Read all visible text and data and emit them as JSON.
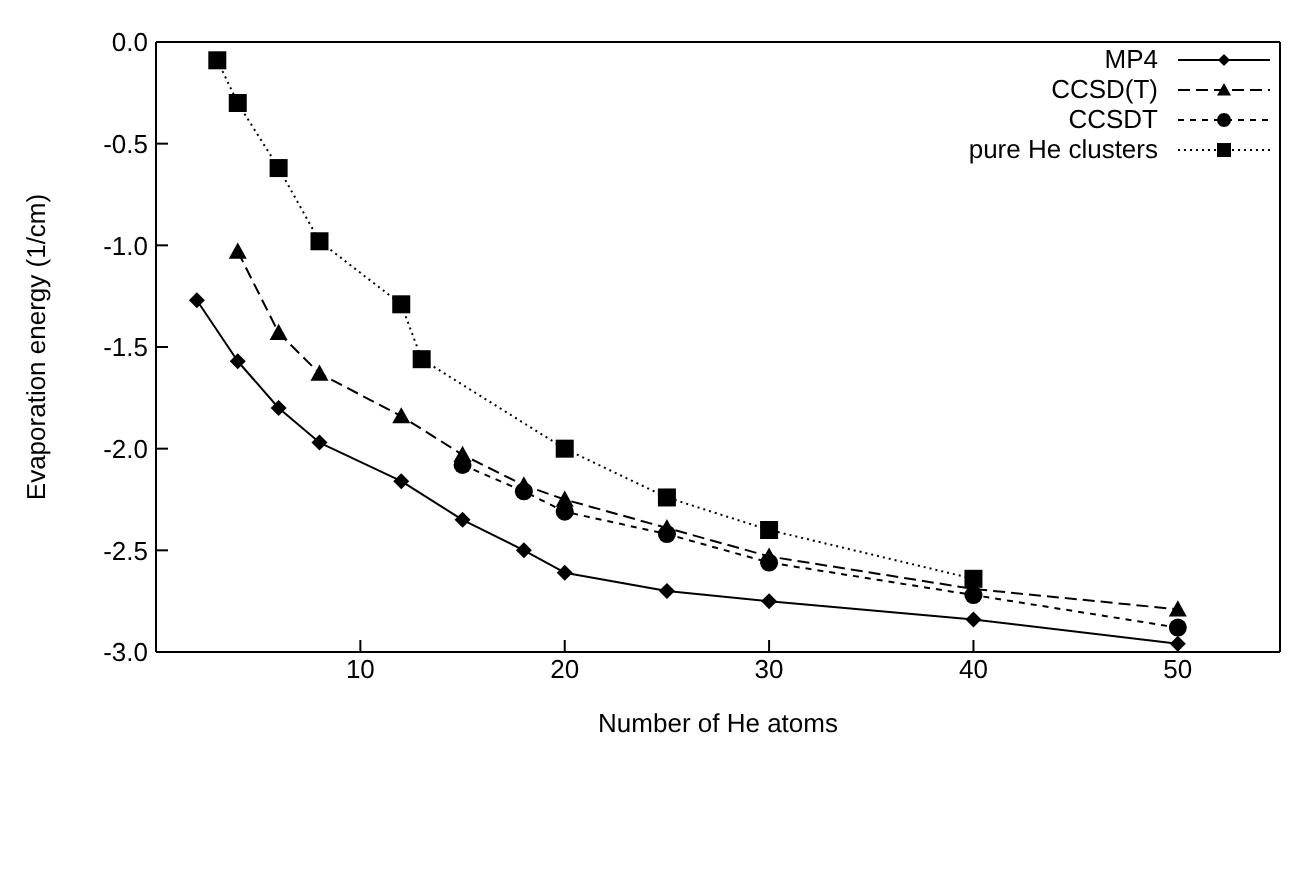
{
  "chart_data": {
    "type": "line",
    "xlabel": "Number of He atoms",
    "ylabel": "Evaporation energy (1/cm)",
    "xlim": [
      0,
      55
    ],
    "xticks": [
      10,
      20,
      30,
      40,
      50
    ],
    "ylim": [
      -3,
      0
    ],
    "yticks": [
      {
        "value": 0,
        "label": "0.0"
      },
      -0.5,
      {
        "value": -1,
        "label": "-1.0"
      },
      -1.5,
      {
        "value": -2,
        "label": "-2.0"
      },
      -2.5,
      {
        "value": -3,
        "label": "-3.0"
      }
    ],
    "legend": "top right",
    "grid": false,
    "series": [
      {
        "name": "MP4",
        "color": "#000000",
        "marker": "diamond",
        "line_style": "solid",
        "x": [
          2,
          4,
          6,
          8,
          12,
          15,
          18,
          20,
          25,
          30,
          40,
          50
        ],
        "values": [
          -1.27,
          -1.57,
          -1.8,
          -1.97,
          -2.16,
          -2.35,
          -2.5,
          -2.61,
          -2.7,
          -2.75,
          -2.84,
          -2.96
        ]
      },
      {
        "name": "CCSD(T)",
        "color": "#000000",
        "marker": "triangle",
        "line_style": "dashed",
        "x": [
          4,
          6,
          8,
          12,
          15,
          18,
          20,
          25,
          30,
          40,
          50
        ],
        "values": [
          -1.03,
          -1.43,
          -1.63,
          -1.84,
          -2.03,
          -2.18,
          -2.25,
          -2.39,
          -2.53,
          -2.69,
          -2.79
        ]
      },
      {
        "name": "CCSDT",
        "color": "#000000",
        "marker": "circle",
        "line_style": "dashed",
        "x": [
          15,
          18,
          20,
          25,
          30,
          40,
          50
        ],
        "values": [
          -2.08,
          -2.21,
          -2.31,
          -2.42,
          -2.56,
          -2.72,
          -2.88
        ]
      },
      {
        "name": "pure He clusters",
        "color": "#000000",
        "marker": "square",
        "line_style": "dotted",
        "x": [
          3,
          4,
          6,
          8,
          12,
          13,
          20,
          25,
          30,
          40
        ],
        "values": [
          -0.09,
          -0.3,
          -0.62,
          -0.98,
          -1.29,
          -1.56,
          -2.0,
          -2.24,
          -2.4,
          -2.64
        ]
      }
    ]
  }
}
